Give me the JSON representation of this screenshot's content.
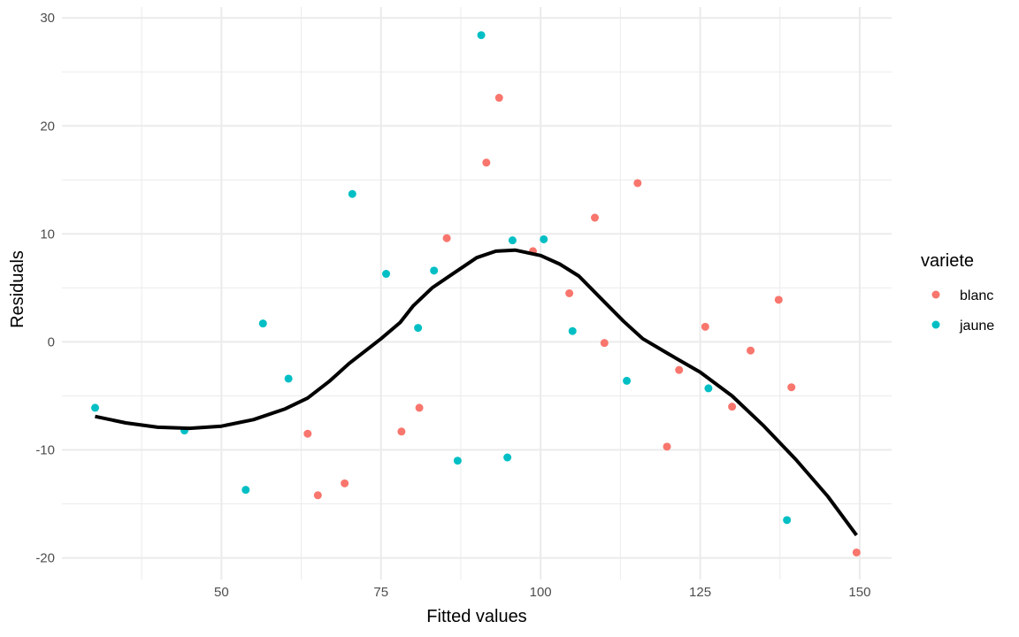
{
  "chart_data": {
    "type": "scatter",
    "title": "",
    "xlabel": "Fitted values",
    "ylabel": "Residuals",
    "xlim": [
      25,
      155
    ],
    "ylim": [
      -22,
      31
    ],
    "x_ticks": [
      50,
      75,
      100,
      125,
      150
    ],
    "x_tick_labels": [
      "50",
      "75",
      "100",
      "125",
      "150"
    ],
    "y_ticks": [
      -20,
      -10,
      0,
      10,
      20,
      30
    ],
    "y_tick_labels": [
      "-20",
      "-10",
      "0",
      "10",
      "20",
      "30"
    ],
    "grid": true,
    "legend": {
      "title": "variete",
      "position": "right"
    },
    "series": [
      {
        "name": "blanc",
        "color": "#F8766D",
        "points": [
          [
            63.5,
            -8.5
          ],
          [
            65.1,
            -14.2
          ],
          [
            69.3,
            -13.1
          ],
          [
            78.2,
            -8.3
          ],
          [
            81.0,
            -6.1
          ],
          [
            85.3,
            9.6
          ],
          [
            91.5,
            16.6
          ],
          [
            93.5,
            22.6
          ],
          [
            98.8,
            8.4
          ],
          [
            104.5,
            4.5
          ],
          [
            108.5,
            11.5
          ],
          [
            110.0,
            -0.1
          ],
          [
            115.2,
            14.7
          ],
          [
            119.8,
            -9.7
          ],
          [
            121.7,
            -2.6
          ],
          [
            125.8,
            1.4
          ],
          [
            130.0,
            -6.0
          ],
          [
            132.9,
            -0.8
          ],
          [
            137.3,
            3.9
          ],
          [
            139.3,
            -4.2
          ],
          [
            149.5,
            -19.5
          ]
        ]
      },
      {
        "name": "jaune",
        "color": "#00BFC4",
        "points": [
          [
            30.2,
            -6.1
          ],
          [
            44.2,
            -8.2
          ],
          [
            53.8,
            -13.7
          ],
          [
            56.5,
            1.7
          ],
          [
            60.5,
            -3.4
          ],
          [
            70.5,
            13.7
          ],
          [
            75.8,
            6.3
          ],
          [
            80.8,
            1.3
          ],
          [
            83.3,
            6.6
          ],
          [
            87.0,
            -11.0
          ],
          [
            90.7,
            28.4
          ],
          [
            94.8,
            -10.7
          ],
          [
            95.6,
            9.4
          ],
          [
            100.5,
            9.5
          ],
          [
            105.0,
            1.0
          ],
          [
            113.5,
            -3.6
          ],
          [
            126.3,
            -4.3
          ],
          [
            138.6,
            -16.5
          ]
        ]
      }
    ],
    "smooth_line": {
      "color": "#000000",
      "points": [
        [
          30.2,
          -6.9
        ],
        [
          35,
          -7.5
        ],
        [
          40,
          -7.9
        ],
        [
          45,
          -8.0
        ],
        [
          50,
          -7.8
        ],
        [
          55,
          -7.2
        ],
        [
          60,
          -6.2
        ],
        [
          63.5,
          -5.2
        ],
        [
          67,
          -3.6
        ],
        [
          70,
          -2.0
        ],
        [
          75,
          0.3
        ],
        [
          78,
          1.8
        ],
        [
          80,
          3.3
        ],
        [
          83,
          5.0
        ],
        [
          86,
          6.2
        ],
        [
          90,
          7.8
        ],
        [
          93,
          8.4
        ],
        [
          96,
          8.5
        ],
        [
          100,
          8.0
        ],
        [
          103,
          7.2
        ],
        [
          106,
          6.1
        ],
        [
          110,
          3.7
        ],
        [
          113,
          1.9
        ],
        [
          116,
          0.3
        ],
        [
          120,
          -1.1
        ],
        [
          125,
          -2.8
        ],
        [
          130,
          -5.0
        ],
        [
          135,
          -7.8
        ],
        [
          140,
          -10.9
        ],
        [
          145,
          -14.3
        ],
        [
          149.5,
          -17.9
        ]
      ]
    }
  }
}
